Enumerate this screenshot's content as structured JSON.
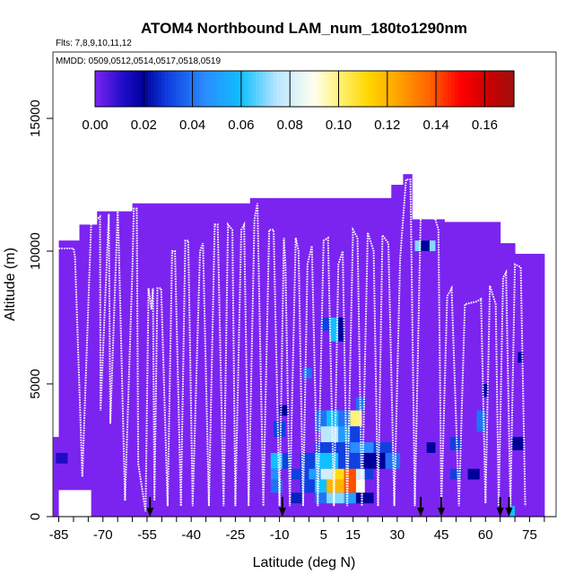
{
  "chart_data": {
    "type": "heatmap",
    "title": "ATOM4 Northbound LAM_num_180to1290nm",
    "subtitle_flights": "Flts: 7,8,9,10,11,12",
    "subtitle_dates": "MMDD: 0509,0512,0514,0517,0518,0519",
    "xlabel": "Latitude (deg N)",
    "ylabel": "Altitude (m)",
    "xlim": [
      -87,
      84
    ],
    "ylim": [
      0,
      17500
    ],
    "x_tick_labels": [
      "-85",
      "-70",
      "-55",
      "-40",
      "-25",
      "-10",
      "5",
      "15",
      "30",
      "45",
      "60",
      "75"
    ],
    "x_ticks": [
      -85,
      -70,
      -55,
      -40,
      -25,
      -10,
      5,
      15,
      30,
      45,
      60,
      75
    ],
    "y_tick_labels": [
      "0",
      "5000",
      "10000",
      "15000"
    ],
    "y_ticks": [
      0,
      5000,
      10000,
      15000
    ],
    "colorbar": {
      "range": [
        0,
        0.172
      ],
      "tick_values": [
        0,
        0.02,
        0.04,
        0.06,
        0.08,
        0.1,
        0.12,
        0.14,
        0.16
      ],
      "tick_labels": [
        "0.00",
        "0.02",
        "0.04",
        "0.06",
        "0.08",
        "0.10",
        "0.12",
        "0.14",
        "0.16"
      ],
      "stops": [
        [
          0.0,
          "#7b24f0"
        ],
        [
          0.012,
          "#1c0cc8"
        ],
        [
          0.02,
          "#00009a"
        ],
        [
          0.03,
          "#1040e0"
        ],
        [
          0.045,
          "#2a8cff"
        ],
        [
          0.06,
          "#10c0ff"
        ],
        [
          0.075,
          "#bce6ff"
        ],
        [
          0.09,
          "#fffff0"
        ],
        [
          0.1,
          "#fff27a"
        ],
        [
          0.112,
          "#ffd700"
        ],
        [
          0.124,
          "#ffa500"
        ],
        [
          0.138,
          "#ff6000"
        ],
        [
          0.15,
          "#ff0000"
        ],
        [
          0.162,
          "#c80000"
        ],
        [
          0.172,
          "#a01010"
        ]
      ]
    },
    "background_value": 0.0,
    "coverage_segments": [
      {
        "x0": -87,
        "x1": -85,
        "ytop": 3000
      },
      {
        "x0": -85,
        "x1": -78,
        "ytop": 10400
      },
      {
        "x0": -78,
        "x1": -72,
        "ytop": 11000
      },
      {
        "x0": -72,
        "x1": -60,
        "ytop": 11500
      },
      {
        "x0": -60,
        "x1": -20,
        "ytop": 11800
      },
      {
        "x0": -20,
        "x1": 28,
        "ytop": 12000
      },
      {
        "x0": 28,
        "x1": 32,
        "ytop": 12500
      },
      {
        "x0": 32,
        "x1": 35,
        "ytop": 12900
      },
      {
        "x0": 35,
        "x1": 46,
        "ytop": 11200
      },
      {
        "x0": 46,
        "x1": 65,
        "ytop": 11100
      },
      {
        "x0": 65,
        "x1": 70,
        "ytop": 10300
      },
      {
        "x0": 70,
        "x1": 80,
        "ytop": 9900
      }
    ],
    "coverage_bottom_gap": {
      "x0": -85,
      "x1": -74,
      "ytop": 1000
    },
    "cells": [
      {
        "x0": 36,
        "x1": 43,
        "y0": 10000,
        "y1": 10400,
        "v": 0.07
      },
      {
        "x0": 38,
        "x1": 41,
        "y0": 10000,
        "y1": 10400,
        "v": 0.02
      },
      {
        "x0": 7,
        "x1": 10,
        "y0": 6600,
        "y1": 7500,
        "v": 0.06
      },
      {
        "x0": 10,
        "x1": 12,
        "y0": 6600,
        "y1": 7500,
        "v": 0.02
      },
      {
        "x0": 4,
        "x1": 7,
        "y0": 7000,
        "y1": 7500,
        "v": 0.03
      },
      {
        "x0": -2,
        "x1": 1,
        "y0": 5200,
        "y1": 5600,
        "v": 0.04
      },
      {
        "x0": 59,
        "x1": 61,
        "y0": 4500,
        "y1": 5000,
        "v": 0.02
      },
      {
        "x0": 57,
        "x1": 60,
        "y0": 3200,
        "y1": 4000,
        "v": 0.04
      },
      {
        "x0": 71,
        "x1": 73,
        "y0": 5800,
        "y1": 6200,
        "v": 0.02
      },
      {
        "x0": 16,
        "x1": 19,
        "y0": 4000,
        "y1": 4500,
        "v": 0.04
      },
      {
        "x0": -10,
        "x1": -7,
        "y0": 3800,
        "y1": 4200,
        "v": 0.02
      },
      {
        "x0": -12,
        "x1": -8,
        "y0": 3000,
        "y1": 3600,
        "v": 0.03
      },
      {
        "x0": 2,
        "x1": 14,
        "y0": 3200,
        "y1": 4000,
        "v": 0.04
      },
      {
        "x0": 14,
        "x1": 18,
        "y0": 3400,
        "y1": 4000,
        "v": 0.1
      },
      {
        "x0": 6,
        "x1": 10,
        "y0": 3400,
        "y1": 4000,
        "v": 0.06
      },
      {
        "x0": 4,
        "x1": 10,
        "y0": 2800,
        "y1": 3400,
        "v": 0.075
      },
      {
        "x0": 10,
        "x1": 14,
        "y0": 2800,
        "y1": 3400,
        "v": 0.05
      },
      {
        "x0": 14,
        "x1": 18,
        "y0": 2800,
        "y1": 3400,
        "v": 0.03
      },
      {
        "x0": 2,
        "x1": 14,
        "y0": 2400,
        "y1": 2800,
        "v": 0.03
      },
      {
        "x0": 14,
        "x1": 22,
        "y0": 2400,
        "y1": 2800,
        "v": 0.045
      },
      {
        "x0": 22,
        "x1": 28,
        "y0": 2400,
        "y1": 2800,
        "v": 0.03
      },
      {
        "x0": 40,
        "x1": 43,
        "y0": 2400,
        "y1": 2800,
        "v": 0.02
      },
      {
        "x0": 48,
        "x1": 52,
        "y0": 2500,
        "y1": 3000,
        "v": 0.03
      },
      {
        "x0": 69,
        "x1": 73,
        "y0": 2500,
        "y1": 3000,
        "v": 0.02
      },
      {
        "x0": -86,
        "x1": -82,
        "y0": 2000,
        "y1": 2400,
        "v": 0.012
      },
      {
        "x0": -13,
        "x1": -9,
        "y0": 1800,
        "y1": 2400,
        "v": 0.06
      },
      {
        "x0": -9,
        "x1": -6,
        "y0": 1800,
        "y1": 2400,
        "v": 0.03
      },
      {
        "x0": -3,
        "x1": 2,
        "y0": 1800,
        "y1": 2400,
        "v": 0.03
      },
      {
        "x0": 2,
        "x1": 10,
        "y0": 1800,
        "y1": 2400,
        "v": 0.06
      },
      {
        "x0": 10,
        "x1": 18,
        "y0": 1800,
        "y1": 2400,
        "v": 0.03
      },
      {
        "x0": 18,
        "x1": 26,
        "y0": 1800,
        "y1": 2400,
        "v": 0.02
      },
      {
        "x0": 26,
        "x1": 31,
        "y0": 1800,
        "y1": 2400,
        "v": 0.04
      },
      {
        "x0": -13,
        "x1": -10,
        "y0": 1400,
        "y1": 1800,
        "v": 0.045
      },
      {
        "x0": -6,
        "x1": 0,
        "y0": 1400,
        "y1": 1800,
        "v": 0.03
      },
      {
        "x0": 0,
        "x1": 4,
        "y0": 1400,
        "y1": 1800,
        "v": 0.05
      },
      {
        "x0": 4,
        "x1": 8,
        "y0": 1400,
        "y1": 1800,
        "v": 0.08
      },
      {
        "x0": 8,
        "x1": 12,
        "y0": 1400,
        "y1": 1800,
        "v": 0.11
      },
      {
        "x0": 12,
        "x1": 16,
        "y0": 1400,
        "y1": 1800,
        "v": 0.14
      },
      {
        "x0": 16,
        "x1": 19,
        "y0": 1400,
        "y1": 1800,
        "v": 0.08
      },
      {
        "x0": 19,
        "x1": 22,
        "y0": 1400,
        "y1": 1800,
        "v": 0.03
      },
      {
        "x0": 48,
        "x1": 52,
        "y0": 1400,
        "y1": 1800,
        "v": 0.03
      },
      {
        "x0": 54,
        "x1": 58,
        "y0": 1400,
        "y1": 1800,
        "v": 0.02
      },
      {
        "x0": -13,
        "x1": -9,
        "y0": 900,
        "y1": 1400,
        "v": 0.04
      },
      {
        "x0": -3,
        "x1": 2,
        "y0": 900,
        "y1": 1400,
        "v": 0.03
      },
      {
        "x0": 2,
        "x1": 6,
        "y0": 900,
        "y1": 1400,
        "v": 0.06
      },
      {
        "x0": 6,
        "x1": 12,
        "y0": 900,
        "y1": 1400,
        "v": 0.12
      },
      {
        "x0": 12,
        "x1": 16,
        "y0": 900,
        "y1": 1400,
        "v": 0.14
      },
      {
        "x0": 16,
        "x1": 19,
        "y0": 900,
        "y1": 1400,
        "v": 0.09
      },
      {
        "x0": -6,
        "x1": -2,
        "y0": 500,
        "y1": 900,
        "v": 0.025
      },
      {
        "x0": 2,
        "x1": 6,
        "y0": 500,
        "y1": 900,
        "v": 0.04
      },
      {
        "x0": 6,
        "x1": 12,
        "y0": 500,
        "y1": 900,
        "v": 0.07
      },
      {
        "x0": 12,
        "x1": 16,
        "y0": 500,
        "y1": 900,
        "v": 0.05
      },
      {
        "x0": 16,
        "x1": 22,
        "y0": 500,
        "y1": 900,
        "v": 0.02
      },
      {
        "x0": 68,
        "x1": 70,
        "y0": 0,
        "y1": 400,
        "v": 0.06
      }
    ],
    "flight_track": [
      [
        -85,
        10100
      ],
      [
        -80,
        10100
      ],
      [
        -79.5,
        9800
      ],
      [
        -77,
        1500
      ],
      [
        -74,
        11000
      ],
      [
        -71,
        11300
      ],
      [
        -70.8,
        4000
      ],
      [
        -68,
        11400
      ],
      [
        -67.5,
        3500
      ],
      [
        -65,
        11500
      ],
      [
        -64.7,
        10500
      ],
      [
        -62.5,
        600
      ],
      [
        -60,
        9300
      ],
      [
        -59.5,
        11600
      ],
      [
        -58.5,
        11600
      ],
      [
        -58,
        2000
      ],
      [
        -55.5,
        200
      ],
      [
        -54.5,
        8600
      ],
      [
        -53.5,
        7800
      ],
      [
        -53,
        8600
      ],
      [
        -52.5,
        600
      ],
      [
        -51.5,
        8600
      ],
      [
        -50.2,
        8600
      ],
      [
        -48,
        400
      ],
      [
        -46.5,
        10000
      ],
      [
        -45.5,
        10000
      ],
      [
        -43.5,
        400
      ],
      [
        -42,
        10400
      ],
      [
        -41,
        10400
      ],
      [
        -39.5,
        400
      ],
      [
        -37,
        10000
      ],
      [
        -36,
        10300
      ],
      [
        -34,
        400
      ],
      [
        -32,
        11000
      ],
      [
        -31,
        11000
      ],
      [
        -29,
        400
      ],
      [
        -27.5,
        11000
      ],
      [
        -26,
        10800
      ],
      [
        -25,
        400
      ],
      [
        -23,
        10800
      ],
      [
        -22,
        11000
      ],
      [
        -20.5,
        400
      ],
      [
        -18.5,
        11200
      ],
      [
        -17.5,
        11800
      ],
      [
        -15.5,
        400
      ],
      [
        -13.5,
        10800
      ],
      [
        -12,
        10800
      ],
      [
        -10,
        400
      ],
      [
        -8.5,
        10500
      ],
      [
        -8,
        9500
      ],
      [
        -6.5,
        400
      ],
      [
        -4.5,
        10500
      ],
      [
        -3.5,
        10000
      ],
      [
        -2,
        400
      ],
      [
        -0.5,
        9500
      ],
      [
        1,
        10200
      ],
      [
        3,
        400
      ],
      [
        5,
        10400
      ],
      [
        6.5,
        10500
      ],
      [
        8.5,
        400
      ],
      [
        10,
        9500
      ],
      [
        11.5,
        10000
      ],
      [
        13,
        400
      ],
      [
        15,
        10800
      ],
      [
        16.5,
        10500
      ],
      [
        18,
        400
      ],
      [
        20,
        10700
      ],
      [
        22,
        10000
      ],
      [
        23.5,
        400
      ],
      [
        25,
        10600
      ],
      [
        27,
        10300
      ],
      [
        29,
        400
      ],
      [
        31,
        9700
      ],
      [
        33,
        12700
      ],
      [
        34.5,
        12700
      ],
      [
        36,
        400
      ],
      [
        38,
        11400
      ],
      [
        43,
        11200
      ],
      [
        44,
        10800
      ],
      [
        45,
        400
      ],
      [
        47,
        8300
      ],
      [
        48.5,
        8600
      ],
      [
        51,
        400
      ],
      [
        53,
        8000
      ],
      [
        57,
        8100
      ],
      [
        58.5,
        8200
      ],
      [
        60,
        500
      ],
      [
        61.5,
        8700
      ],
      [
        63.5,
        8000
      ],
      [
        64.5,
        400
      ],
      [
        66,
        9000
      ],
      [
        67,
        9200
      ],
      [
        68.5,
        400
      ],
      [
        70,
        9500
      ],
      [
        72,
        9400
      ],
      [
        73.5,
        400
      ]
    ],
    "arrow_latitudes": [
      -54,
      -9,
      38,
      45,
      65,
      68
    ]
  }
}
